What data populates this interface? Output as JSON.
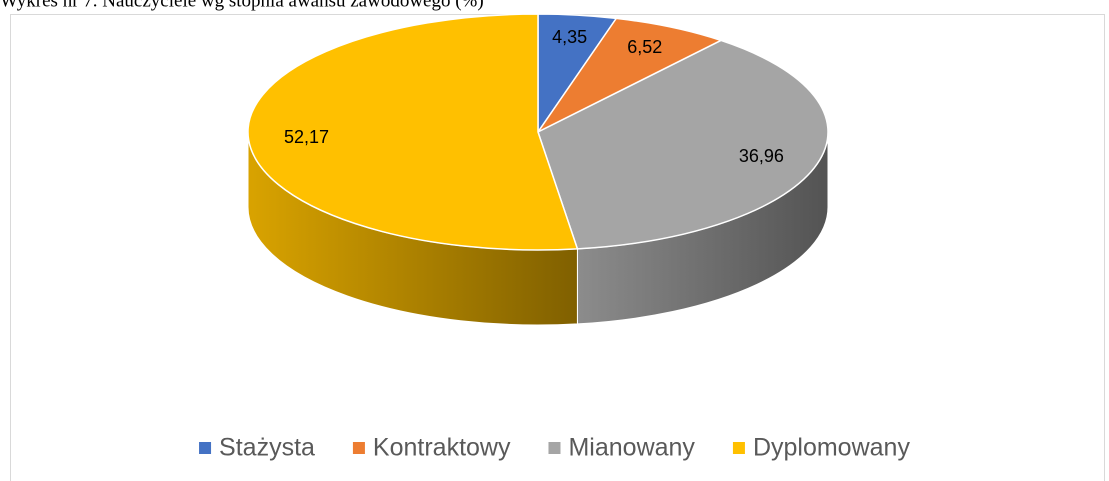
{
  "chart_data": {
    "type": "pie",
    "title": "Wykres nr 7. Nauczyciele wg stopnia awansu zawodowego (%)",
    "categories": [
      "Stażysta",
      "Kontraktowy",
      "Mianowany",
      "Dyplomowany"
    ],
    "values": [
      4.35,
      6.52,
      36.96,
      52.17
    ],
    "value_labels": [
      "4,35",
      "6,52",
      "36,96",
      "52,17"
    ],
    "colors": [
      "#4472c4",
      "#ed7d31",
      "#a5a5a5",
      "#ffc000"
    ],
    "legend": "bottom"
  }
}
